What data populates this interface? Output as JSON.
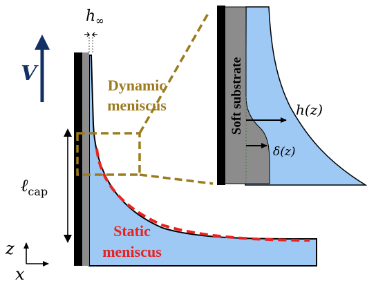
{
  "labels": {
    "h_inf_symbol": "h",
    "h_inf_sub": "∞",
    "velocity": "V",
    "dynamic_line1": "Dynamic",
    "dynamic_line2": "meniscus",
    "static_line1": "Static",
    "static_line2": "meniscus",
    "soft_substrate": "Soft substrate",
    "h_of_z": "h(z)",
    "delta_of_z": "δ(z)",
    "ell_symbol": "ℓ",
    "ell_sub": "cap",
    "axis_z": "z",
    "axis_x": "x"
  },
  "colors": {
    "liquid": "#9ec9f5",
    "substrate_gray": "#8c8c8c",
    "wall_black": "#000000",
    "arrow_navy": "#123063",
    "dynamic_gold": "#9c7b1e",
    "static_red": "#e8221f"
  }
}
